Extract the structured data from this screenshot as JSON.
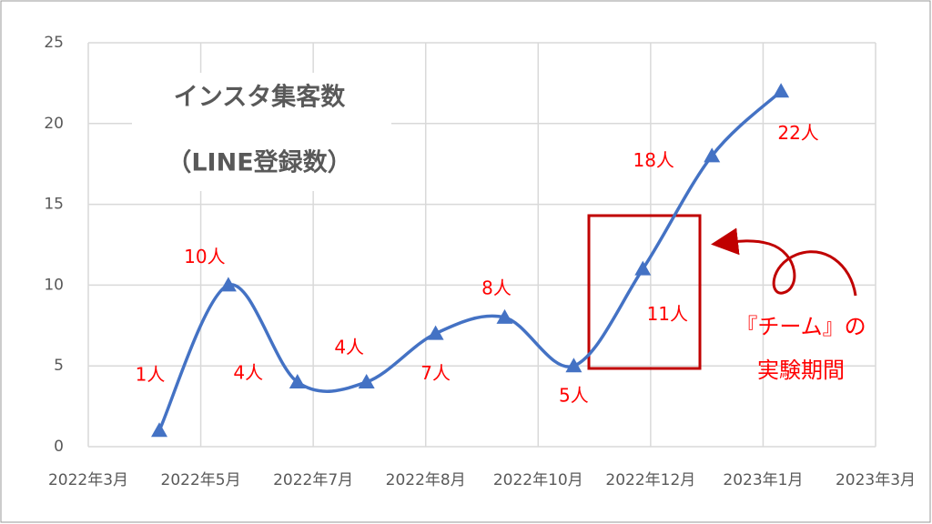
{
  "chart_data": {
    "type": "line",
    "title": "インスタ集客数",
    "subtitle": "（LINE登録数）",
    "categories": [
      null,
      null,
      null,
      null,
      null,
      null,
      null,
      null,
      null,
      null
    ],
    "values": [
      1,
      10,
      4,
      4,
      7,
      8,
      5,
      11,
      18,
      22
    ],
    "value_labels": [
      "1人",
      "10人",
      "4人",
      "4人",
      "7人",
      "8人",
      "5人",
      "11人",
      "18人",
      "22人"
    ],
    "color": "#4472c4",
    "label_color": "#ff0000",
    "x_axis_labels": [
      "2022年3月",
      "2022年5月",
      "2022年7月",
      "2022年8月",
      "2022年10月",
      "2022年12月",
      "2023年1月",
      "2023年3月"
    ],
    "ylim": [
      0,
      25
    ],
    "yticks": [
      0,
      5,
      10,
      15,
      20,
      25
    ],
    "grid": true,
    "annotation": [
      "『チーム』の",
      "実験期間"
    ]
  }
}
